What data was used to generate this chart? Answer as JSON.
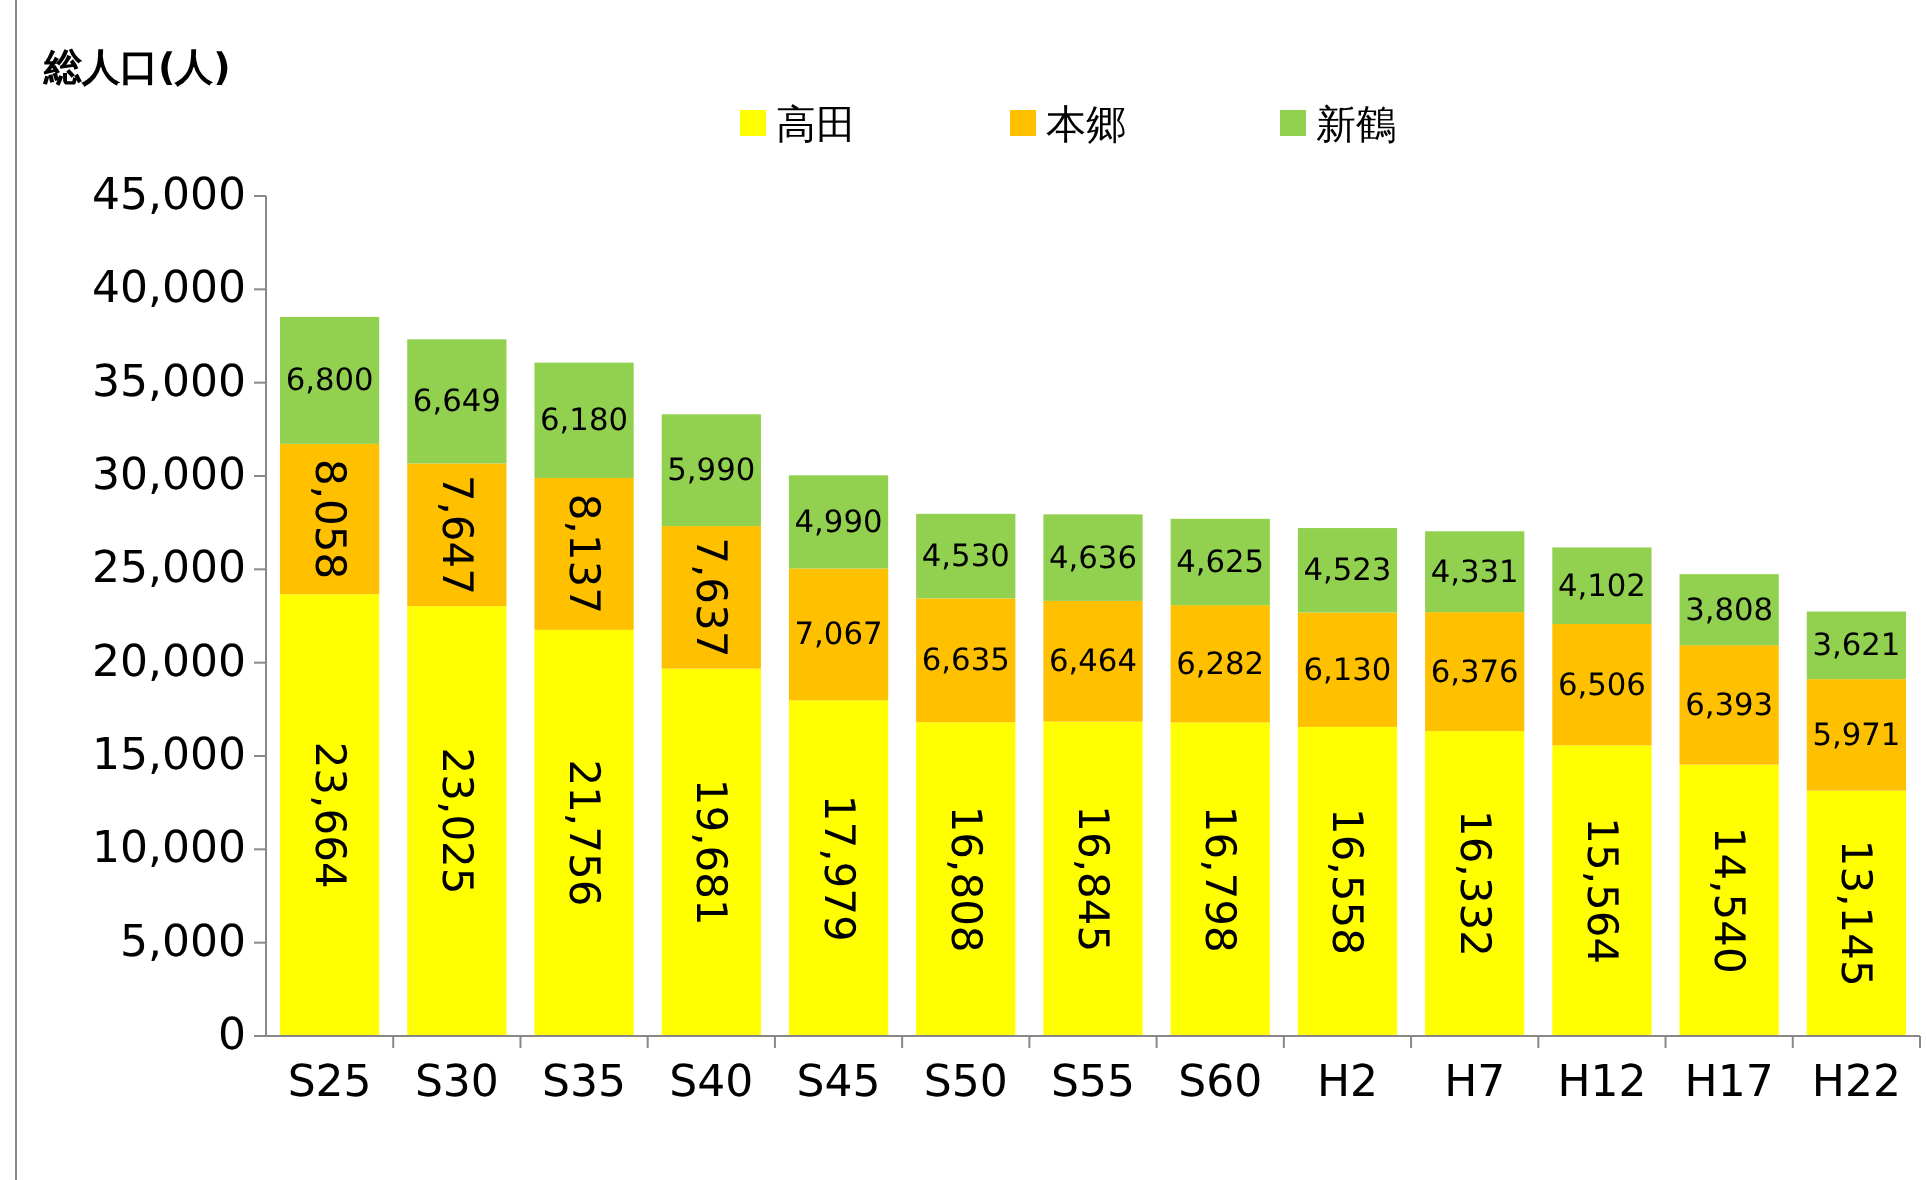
{
  "chart_data": {
    "type": "bar",
    "stacked": true,
    "ylabel": "総人口(人)",
    "categories": [
      "S25",
      "S30",
      "S35",
      "S40",
      "S45",
      "S50",
      "S55",
      "S60",
      "H2",
      "H7",
      "H12",
      "H17",
      "H22"
    ],
    "series": [
      {
        "name": "高田",
        "color": "#ffff00",
        "values": [
          23664,
          23025,
          21756,
          19681,
          17979,
          16808,
          16845,
          16798,
          16558,
          16332,
          15564,
          14540,
          13145
        ],
        "value_labels": [
          "23,664",
          "23,025",
          "21,756",
          "19,681",
          "17,979",
          "16,808",
          "16,845",
          "16,798",
          "16,558",
          "16,332",
          "15,564",
          "14,540",
          "13,145"
        ]
      },
      {
        "name": "本郷",
        "color": "#ffc000",
        "values": [
          8058,
          7647,
          8137,
          7637,
          7067,
          6635,
          6464,
          6282,
          6130,
          6376,
          6506,
          6393,
          5971
        ],
        "value_labels": [
          "8,058",
          "7,647",
          "8,137",
          "7,637",
          "7,067",
          "6,635",
          "6,464",
          "6,282",
          "6,130",
          "6,376",
          "6,506",
          "6,393",
          "5,971"
        ]
      },
      {
        "name": "新鶴",
        "color": "#92d050",
        "values": [
          6800,
          6649,
          6180,
          5990,
          4990,
          4530,
          4636,
          4625,
          4523,
          4331,
          4102,
          3808,
          3621
        ],
        "value_labels": [
          "6,800",
          "6,649",
          "6,180",
          "5,990",
          "4,990",
          "4,530",
          "4,636",
          "4,625",
          "4,523",
          "4,331",
          "4,102",
          "3,808",
          "3,621"
        ]
      }
    ],
    "ylim": [
      0,
      45000
    ],
    "yticks": [
      {
        "value": 0,
        "label": "0"
      },
      {
        "value": 5000,
        "label": "5,000"
      },
      {
        "value": 10000,
        "label": "10,000"
      },
      {
        "value": 15000,
        "label": "15,000"
      },
      {
        "value": 20000,
        "label": "20,000"
      },
      {
        "value": 25000,
        "label": "25,000"
      },
      {
        "value": 30000,
        "label": "30,000"
      },
      {
        "value": 35000,
        "label": "35,000"
      },
      {
        "value": 40000,
        "label": "40,000"
      },
      {
        "value": 45000,
        "label": "45,000"
      }
    ],
    "legend": "top",
    "grid": false
  }
}
